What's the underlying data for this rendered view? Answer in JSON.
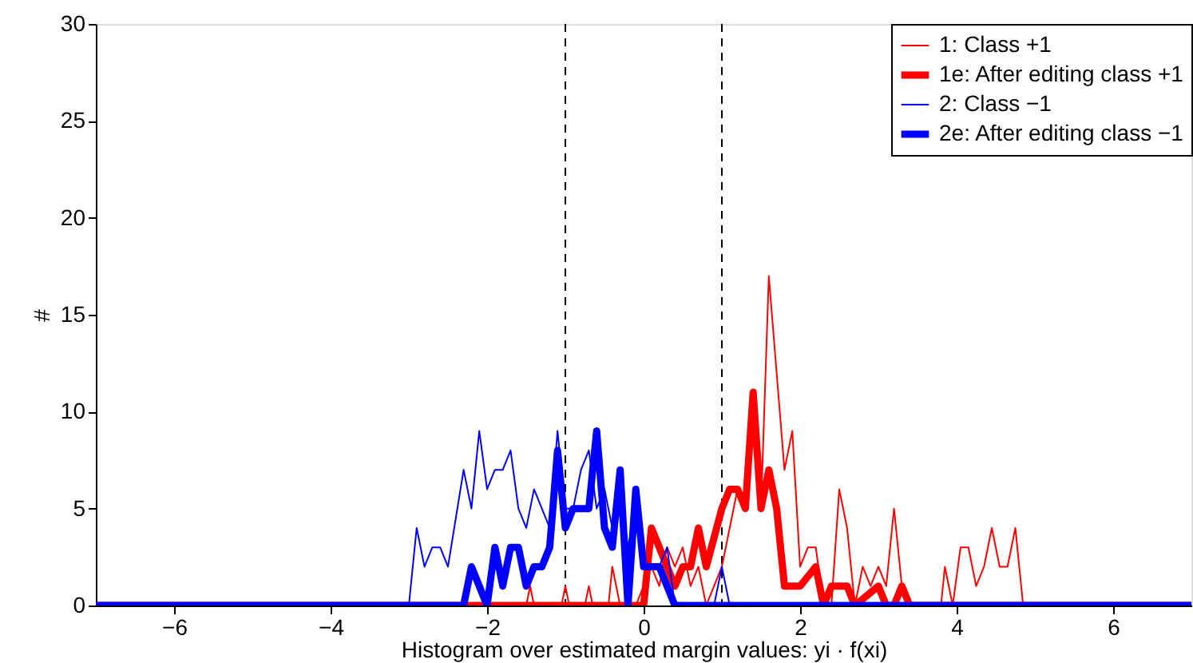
{
  "chart_data": {
    "type": "line",
    "xlabel": "Histogram over estimated margin values: yi · f(xi)",
    "ylabel": "#",
    "xlim": [
      -7,
      7
    ],
    "xticks": [
      -6,
      -4,
      -2,
      0,
      2,
      4,
      6
    ],
    "ylim": [
      0,
      30
    ],
    "yticks": [
      0,
      5,
      10,
      15,
      20,
      25,
      30
    ],
    "grid": false,
    "legend": "top right",
    "line_style": "solid",
    "marker": "none",
    "ref_lines": [
      {
        "axis": "x",
        "value": -1,
        "color": "#000000",
        "line_style": "dashed"
      },
      {
        "axis": "x",
        "value": 1,
        "color": "#000000",
        "line_style": "dashed"
      }
    ],
    "series": [
      {
        "name": "1:  Class +1",
        "color": "#ff0000",
        "x": [
          -7,
          -1.5,
          -1.45,
          -1.4,
          -1.05,
          -1.0,
          -0.95,
          -0.75,
          -0.7,
          -0.65,
          -0.45,
          -0.4,
          -0.3,
          -0.1,
          0.0,
          0.1,
          0.2,
          0.3,
          0.4,
          0.5,
          0.6,
          0.7,
          0.8,
          0.9,
          1.0,
          1.1,
          1.2,
          1.3,
          1.4,
          1.5,
          1.6,
          1.7,
          1.8,
          1.9,
          2.0,
          2.1,
          2.2,
          2.3,
          2.4,
          2.5,
          2.6,
          2.7,
          2.8,
          2.9,
          3.0,
          3.1,
          3.2,
          3.3,
          3.4,
          3.8,
          3.85,
          3.95,
          4.05,
          4.15,
          4.25,
          4.35,
          4.45,
          4.55,
          4.65,
          4.75,
          4.85,
          7
        ],
        "values": [
          0,
          0,
          1,
          0,
          0,
          1,
          0,
          0,
          1,
          0,
          0,
          2,
          0,
          0,
          1,
          2,
          1,
          3,
          2,
          3,
          1,
          2,
          0,
          1,
          2,
          4,
          6,
          5,
          11,
          5,
          17,
          12,
          7,
          9,
          2,
          3,
          3,
          0,
          0,
          6,
          4,
          0,
          2,
          1,
          2,
          1,
          5,
          1,
          0,
          0,
          2,
          0,
          3,
          3,
          1,
          2,
          4,
          2,
          2,
          4,
          0,
          0
        ]
      },
      {
        "name": "1e: After editing class +1",
        "color": "#ff0000",
        "x": [
          -7,
          0.0,
          0.1,
          0.2,
          0.4,
          0.5,
          0.6,
          0.7,
          0.8,
          1.0,
          1.1,
          1.2,
          1.3,
          1.4,
          1.5,
          1.6,
          1.7,
          1.8,
          2.0,
          2.2,
          2.3,
          2.4,
          2.6,
          2.7,
          3.0,
          3.1,
          3.2,
          3.3,
          3.4,
          7
        ],
        "values": [
          0,
          0,
          4,
          3,
          1,
          2,
          2,
          4,
          2,
          5,
          6,
          6,
          5,
          11,
          5,
          7,
          5,
          1,
          1,
          2,
          0,
          1,
          1,
          0,
          1,
          0,
          0,
          1,
          0,
          0
        ]
      },
      {
        "name": "2:  Class −1",
        "color": "#0000ff",
        "x": [
          -7,
          -3.0,
          -2.9,
          -2.8,
          -2.7,
          -2.6,
          -2.5,
          -2.3,
          -2.2,
          -2.1,
          -2.0,
          -1.9,
          -1.8,
          -1.7,
          -1.6,
          -1.5,
          -1.4,
          -1.2,
          -1.1,
          -1.0,
          -0.9,
          -0.8,
          -0.7,
          -0.6,
          -0.5,
          -0.4,
          -0.3,
          -0.2,
          -0.1,
          0.0,
          0.2,
          0.3,
          0.4,
          0.9,
          1.0,
          1.1,
          7
        ],
        "values": [
          0,
          0,
          4,
          2,
          3,
          3,
          2,
          7,
          5,
          9,
          6,
          7,
          7,
          8,
          5,
          4,
          6,
          4,
          9,
          5,
          5,
          7,
          8,
          5,
          6,
          4,
          6,
          3,
          5,
          2,
          2,
          3,
          0,
          0,
          2,
          0,
          0
        ]
      },
      {
        "name": "2e: After editing class −1",
        "color": "#0000ff",
        "x": [
          -7,
          -2.3,
          -2.2,
          -2.1,
          -2.0,
          -1.9,
          -1.8,
          -1.7,
          -1.6,
          -1.5,
          -1.4,
          -1.3,
          -1.2,
          -1.1,
          -1.0,
          -0.9,
          -0.7,
          -0.6,
          -0.5,
          -0.4,
          -0.3,
          -0.2,
          -0.1,
          0.0,
          0.2,
          0.4,
          7
        ],
        "values": [
          0,
          0,
          2,
          1,
          0,
          3,
          1,
          3,
          3,
          1,
          2,
          2,
          3,
          8,
          4,
          5,
          5,
          9,
          4,
          3,
          7,
          0,
          6,
          2,
          2,
          0,
          0
        ]
      }
    ]
  }
}
